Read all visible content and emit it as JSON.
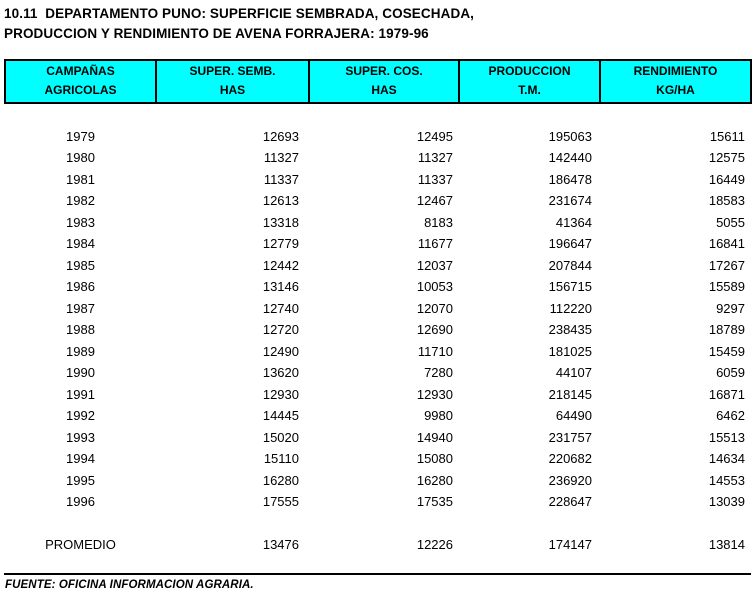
{
  "title": {
    "line1": "10.11  DEPARTAMENTO PUNO: SUPERFICIE SEMBRADA, COSECHADA,",
    "line2": "PRODUCCION Y RENDIMIENTO DE AVENA FORRAJERA: 1979-96"
  },
  "table": {
    "header_bg": "#00ffff",
    "border_color": "#000000",
    "columns": [
      {
        "line1": "CAMPAÑAS",
        "line2": "AGRICOLAS"
      },
      {
        "line1": "SUPER. SEMB.",
        "line2": "HAS"
      },
      {
        "line1": "SUPER. COS.",
        "line2": "HAS"
      },
      {
        "line1": "PRODUCCION",
        "line2": "T.M."
      },
      {
        "line1": "RENDIMIENTO",
        "line2": "KG/HA"
      }
    ],
    "rows": [
      [
        "1979",
        "12693",
        "12495",
        "195063",
        "15611"
      ],
      [
        "1980",
        "11327",
        "11327",
        "142440",
        "12575"
      ],
      [
        "1981",
        "11337",
        "11337",
        "186478",
        "16449"
      ],
      [
        "1982",
        "12613",
        "12467",
        "231674",
        "18583"
      ],
      [
        "1983",
        "13318",
        "8183",
        "41364",
        "5055"
      ],
      [
        "1984",
        "12779",
        "11677",
        "196647",
        "16841"
      ],
      [
        "1985",
        "12442",
        "12037",
        "207844",
        "17267"
      ],
      [
        "1986",
        "13146",
        "10053",
        "156715",
        "15589"
      ],
      [
        "1987",
        "12740",
        "12070",
        "112220",
        "9297"
      ],
      [
        "1988",
        "12720",
        "12690",
        "238435",
        "18789"
      ],
      [
        "1989",
        "12490",
        "11710",
        "181025",
        "15459"
      ],
      [
        "1990",
        "13620",
        "7280",
        "44107",
        "6059"
      ],
      [
        "1991",
        "12930",
        "12930",
        "218145",
        "16871"
      ],
      [
        "1992",
        "14445",
        "9980",
        "64490",
        "6462"
      ],
      [
        "1993",
        "15020",
        "14940",
        "231757",
        "15513"
      ],
      [
        "1994",
        "15110",
        "15080",
        "220682",
        "14634"
      ],
      [
        "1995",
        "16280",
        "16280",
        "236920",
        "14553"
      ],
      [
        "1996",
        "17555",
        "17535",
        "228647",
        "13039"
      ]
    ],
    "summary_row": [
      "PROMEDIO",
      "13476",
      "12226",
      "174147",
      "13814"
    ]
  },
  "footer": {
    "source": "FUENTE: OFICINA INFORMACION AGRARIA."
  }
}
